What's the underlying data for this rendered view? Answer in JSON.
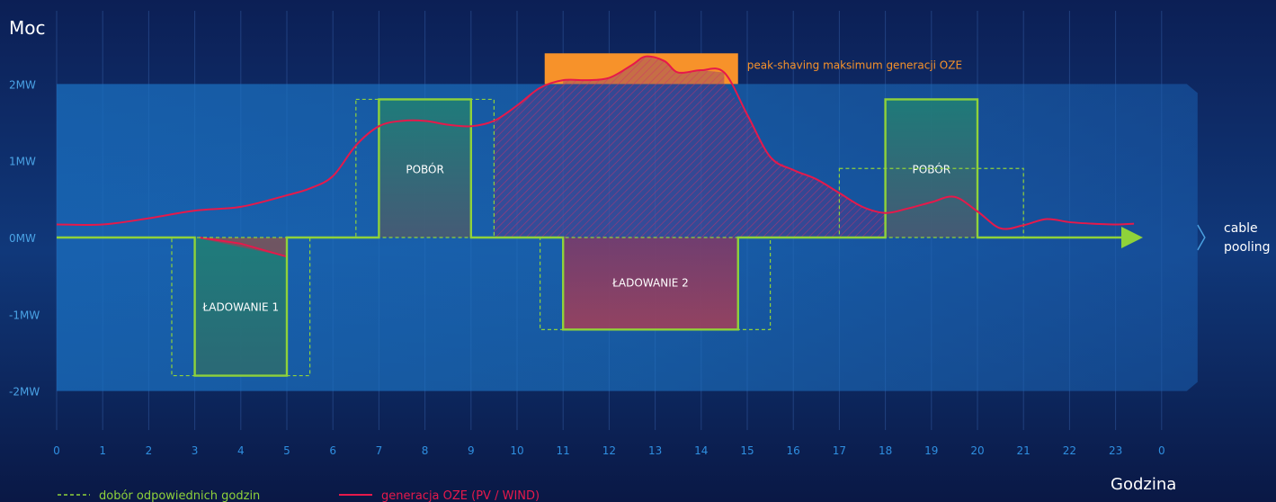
{
  "chart_data": {
    "type": "line",
    "title": "",
    "ylabel": "Moc",
    "xlabel": "Godzina",
    "x_ticks": [
      "0",
      "1",
      "2",
      "3",
      "4",
      "5",
      "6",
      "7",
      "8",
      "9",
      "10",
      "11",
      "12",
      "13",
      "14",
      "15",
      "16",
      "17",
      "18",
      "19",
      "20",
      "21",
      "22",
      "23",
      "0"
    ],
    "y_ticks": [
      "2MW",
      "1MW",
      "0MW",
      "-1MW",
      "-2MW"
    ],
    "y_tick_values": [
      2,
      1,
      0,
      -1,
      -2
    ],
    "xlim": [
      0,
      24
    ],
    "ylim": [
      -2.5,
      2.75
    ],
    "band_range": [
      -2,
      2
    ],
    "band_label": "cable pooling",
    "series": [
      {
        "name": "generacja OZE (PV / WIND)",
        "color": "#e6194b",
        "x": [
          0,
          1,
          2,
          3,
          4,
          5,
          5.5,
          6,
          6.5,
          7,
          7.5,
          8,
          8.5,
          9,
          9.5,
          10,
          10.5,
          11,
          11.5,
          12,
          12.5,
          12.8,
          13.2,
          13.5,
          14,
          14.5,
          15,
          15.5,
          16,
          16.5,
          17,
          17.5,
          18,
          18.5,
          19,
          19.5,
          20,
          20.5,
          21,
          21.5,
          22,
          22.5,
          23,
          23.4
        ],
        "y": [
          0.17,
          0.17,
          0.25,
          0.35,
          0.4,
          0.55,
          0.64,
          0.8,
          1.2,
          1.45,
          1.52,
          1.52,
          1.47,
          1.45,
          1.52,
          1.72,
          1.95,
          2.05,
          2.05,
          2.08,
          2.25,
          2.36,
          2.3,
          2.15,
          2.18,
          2.15,
          1.6,
          1.05,
          0.88,
          0.76,
          0.58,
          0.4,
          0.32,
          0.38,
          0.46,
          0.53,
          0.34,
          0.12,
          0.16,
          0.24,
          0.2,
          0.18,
          0.17,
          0.18
        ]
      },
      {
        "name": "dobór odpowiednich godzin",
        "color": "#8fd23a",
        "x": [
          0,
          3,
          3,
          5,
          5,
          7,
          7,
          9,
          9,
          11,
          11,
          14.8,
          14.8,
          18,
          18,
          20,
          20,
          23.5
        ],
        "y": [
          0,
          0,
          -1.8,
          -1.8,
          0,
          0,
          1.8,
          1.8,
          0,
          0,
          -1.2,
          -1.2,
          0,
          0,
          1.8,
          1.8,
          0,
          0
        ]
      }
    ],
    "blocks": [
      {
        "label": "ŁADOWANIE 1",
        "x0": 3,
        "x1": 5,
        "y": -1.8
      },
      {
        "label": "POBÓR",
        "x0": 7,
        "x1": 9,
        "y": 1.8
      },
      {
        "label": "ŁADOWANIE 2",
        "x0": 11,
        "x1": 14.8,
        "y": -1.2
      },
      {
        "label": "POBÓR",
        "x0": 18,
        "x1": 20,
        "y": 1.8
      }
    ],
    "dashed_windows": [
      {
        "x0": 2.5,
        "x1": 5.5,
        "y": -1.8
      },
      {
        "x0": 6.5,
        "x1": 9.5,
        "y": 1.8
      },
      {
        "x0": 10.5,
        "x1": 15.5,
        "y": -1.2
      },
      {
        "x0": 17,
        "x1": 21,
        "y": 0.9
      }
    ],
    "peak_shaving": {
      "label": "peak-shaving maksimum generacji OZE",
      "x0": 10.6,
      "x1": 14.8,
      "y0": 2.0,
      "y1": 2.4,
      "color": "#f7922a"
    },
    "legend": [
      {
        "label": "dobór odpowiednich godzin",
        "style": "dashed",
        "color": "#8fd23a"
      },
      {
        "label": "generacja OZE (PV / WIND)",
        "style": "solid",
        "color": "#e6194b"
      }
    ],
    "legend_placement": "bottom-left",
    "grid": true
  }
}
